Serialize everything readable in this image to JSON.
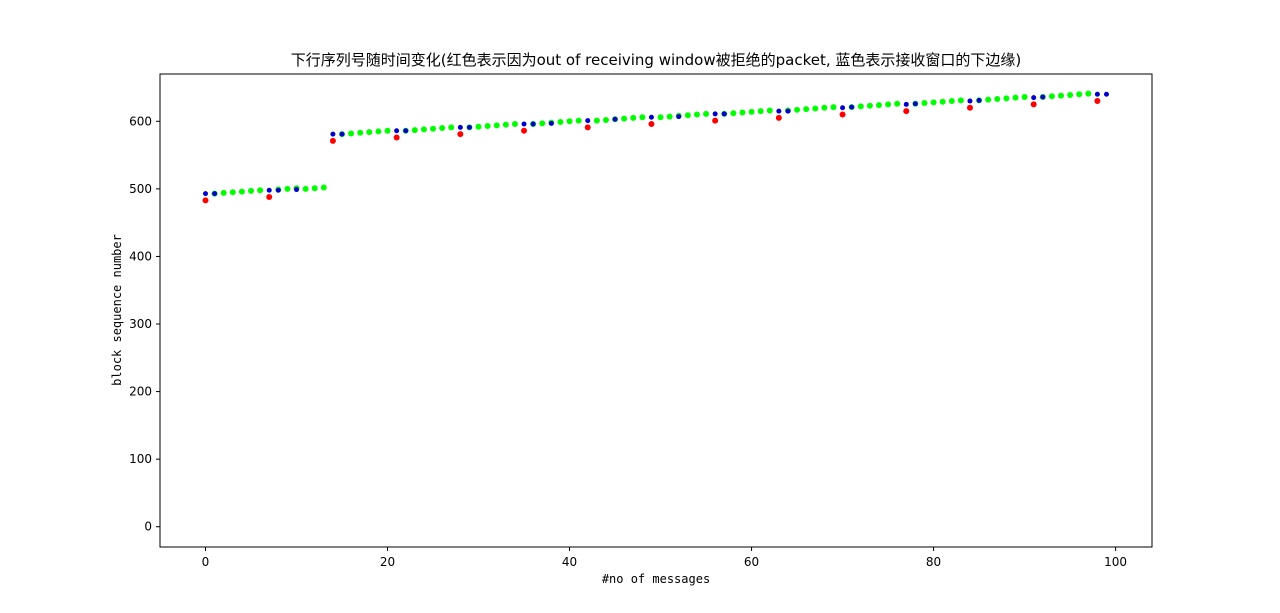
{
  "chart_data": {
    "type": "scatter",
    "title": "下行序列号随时间变化(红色表示因为out of receiving window被拒绝的packet, 蓝色表示接收窗口的下边缘)",
    "xlabel": "#no of messages",
    "ylabel": "block sequence number",
    "xlim": [
      -5,
      104
    ],
    "ylim": [
      -30,
      670
    ],
    "xticks": [
      0,
      20,
      40,
      60,
      80,
      100
    ],
    "yticks": [
      0,
      100,
      200,
      300,
      400,
      500,
      600
    ],
    "grid": false,
    "series": [
      {
        "color": "#00ff00",
        "points": [
          [
            1,
            493
          ],
          [
            2,
            494
          ],
          [
            3,
            495
          ],
          [
            4,
            496
          ],
          [
            5,
            497
          ],
          [
            6,
            498
          ],
          [
            8,
            499
          ],
          [
            9,
            500
          ],
          [
            10,
            501
          ],
          [
            11,
            500
          ],
          [
            12,
            501
          ],
          [
            13,
            502
          ],
          [
            15,
            581
          ],
          [
            16,
            582
          ],
          [
            17,
            583
          ],
          [
            18,
            584
          ],
          [
            19,
            585
          ],
          [
            20,
            586
          ],
          [
            22,
            586
          ],
          [
            23,
            587
          ],
          [
            24,
            588
          ],
          [
            25,
            589
          ],
          [
            26,
            590
          ],
          [
            27,
            591
          ],
          [
            29,
            591
          ],
          [
            30,
            592
          ],
          [
            31,
            593
          ],
          [
            32,
            594
          ],
          [
            33,
            595
          ],
          [
            34,
            596
          ],
          [
            36,
            596
          ],
          [
            37,
            597
          ],
          [
            38,
            598
          ],
          [
            39,
            599
          ],
          [
            40,
            600
          ],
          [
            41,
            601
          ],
          [
            43,
            601
          ],
          [
            44,
            602
          ],
          [
            45,
            603
          ],
          [
            46,
            604
          ],
          [
            47,
            605
          ],
          [
            48,
            606
          ],
          [
            50,
            606
          ],
          [
            51,
            607
          ],
          [
            52,
            608
          ],
          [
            53,
            609
          ],
          [
            54,
            610
          ],
          [
            55,
            611
          ],
          [
            57,
            611
          ],
          [
            58,
            612
          ],
          [
            59,
            613
          ],
          [
            60,
            614
          ],
          [
            61,
            615
          ],
          [
            62,
            616
          ],
          [
            64,
            616
          ],
          [
            65,
            617
          ],
          [
            66,
            618
          ],
          [
            67,
            619
          ],
          [
            68,
            620
          ],
          [
            69,
            621
          ],
          [
            71,
            621
          ],
          [
            72,
            622
          ],
          [
            73,
            623
          ],
          [
            74,
            624
          ],
          [
            75,
            625
          ],
          [
            76,
            626
          ],
          [
            78,
            626
          ],
          [
            79,
            627
          ],
          [
            80,
            628
          ],
          [
            81,
            629
          ],
          [
            82,
            630
          ],
          [
            83,
            631
          ],
          [
            85,
            631
          ],
          [
            86,
            632
          ],
          [
            87,
            633
          ],
          [
            88,
            634
          ],
          [
            89,
            635
          ],
          [
            90,
            636
          ],
          [
            92,
            636
          ],
          [
            93,
            637
          ],
          [
            94,
            638
          ],
          [
            95,
            639
          ],
          [
            96,
            640
          ],
          [
            97,
            641
          ]
        ]
      },
      {
        "color": "#ff0000",
        "points": [
          [
            0,
            483
          ],
          [
            7,
            488
          ],
          [
            14,
            571
          ],
          [
            21,
            576
          ],
          [
            28,
            581
          ],
          [
            35,
            586
          ],
          [
            42,
            591
          ],
          [
            49,
            596
          ],
          [
            56,
            601
          ],
          [
            63,
            605
          ],
          [
            70,
            610
          ],
          [
            77,
            615
          ],
          [
            84,
            620
          ],
          [
            91,
            625
          ],
          [
            98,
            630
          ]
        ]
      },
      {
        "color": "#0000cc",
        "points": [
          [
            0,
            493
          ],
          [
            1,
            493
          ],
          [
            7,
            498
          ],
          [
            8,
            498
          ],
          [
            10,
            499
          ],
          [
            14,
            581
          ],
          [
            15,
            581
          ],
          [
            21,
            586
          ],
          [
            22,
            586
          ],
          [
            28,
            591
          ],
          [
            29,
            591
          ],
          [
            35,
            596
          ],
          [
            36,
            596
          ],
          [
            38,
            597
          ],
          [
            42,
            601
          ],
          [
            45,
            603
          ],
          [
            49,
            606
          ],
          [
            52,
            607
          ],
          [
            56,
            611
          ],
          [
            57,
            611
          ],
          [
            63,
            615
          ],
          [
            64,
            615
          ],
          [
            70,
            620
          ],
          [
            71,
            621
          ],
          [
            77,
            625
          ],
          [
            78,
            626
          ],
          [
            84,
            630
          ],
          [
            85,
            631
          ],
          [
            91,
            635
          ],
          [
            92,
            636
          ],
          [
            98,
            640
          ],
          [
            99,
            640
          ]
        ]
      }
    ]
  }
}
